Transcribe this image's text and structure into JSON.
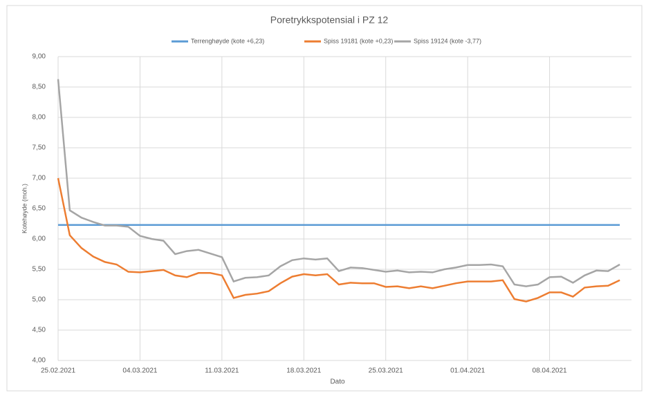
{
  "chart_data": {
    "type": "line",
    "title": "Poretrykkspotensial i PZ 12",
    "x_label": "Dato",
    "y_label": "Kotehøyde (moh.)",
    "x": [
      "25.02.2021",
      "26.02.2021",
      "27.02.2021",
      "28.02.2021",
      "01.03.2021",
      "02.03.2021",
      "03.03.2021",
      "04.03.2021",
      "05.03.2021",
      "06.03.2021",
      "07.03.2021",
      "08.03.2021",
      "09.03.2021",
      "10.03.2021",
      "11.03.2021",
      "12.03.2021",
      "13.03.2021",
      "14.03.2021",
      "15.03.2021",
      "16.03.2021",
      "17.03.2021",
      "18.03.2021",
      "19.03.2021",
      "20.03.2021",
      "21.03.2021",
      "22.03.2021",
      "23.03.2021",
      "24.03.2021",
      "25.03.2021",
      "26.03.2021",
      "27.03.2021",
      "28.03.2021",
      "29.03.2021",
      "30.03.2021",
      "31.03.2021",
      "01.04.2021",
      "02.04.2021",
      "03.04.2021",
      "04.04.2021",
      "05.04.2021",
      "06.04.2021",
      "07.04.2021",
      "08.04.2021",
      "09.04.2021",
      "10.04.2021",
      "11.04.2021",
      "12.04.2021",
      "13.04.2021",
      "14.04.2021"
    ],
    "series": [
      {
        "name": "Terrenghøyde (kote +6,23)",
        "color": "#5b9bd5",
        "values": [
          6.23,
          6.23,
          6.23,
          6.23,
          6.23,
          6.23,
          6.23,
          6.23,
          6.23,
          6.23,
          6.23,
          6.23,
          6.23,
          6.23,
          6.23,
          6.23,
          6.23,
          6.23,
          6.23,
          6.23,
          6.23,
          6.23,
          6.23,
          6.23,
          6.23,
          6.23,
          6.23,
          6.23,
          6.23,
          6.23,
          6.23,
          6.23,
          6.23,
          6.23,
          6.23,
          6.23,
          6.23,
          6.23,
          6.23,
          6.23,
          6.23,
          6.23,
          6.23,
          6.23,
          6.23,
          6.23,
          6.23,
          6.23,
          6.23
        ]
      },
      {
        "name": "Spiss 19181 (kote +0,23)",
        "color": "#ed7d31",
        "values": [
          7.0,
          6.06,
          5.85,
          5.71,
          5.62,
          5.58,
          5.46,
          5.45,
          5.47,
          5.49,
          5.4,
          5.37,
          5.44,
          5.44,
          5.4,
          5.03,
          5.08,
          5.1,
          5.14,
          5.27,
          5.38,
          5.42,
          5.4,
          5.42,
          5.25,
          5.28,
          5.27,
          5.27,
          5.21,
          5.22,
          5.19,
          5.22,
          5.19,
          5.23,
          5.27,
          5.3,
          5.3,
          5.3,
          5.32,
          5.01,
          4.97,
          5.03,
          5.12,
          5.12,
          5.05,
          5.2,
          5.22,
          5.23,
          5.32
        ]
      },
      {
        "name": "Spiss 19124 (kote -3,77)",
        "color": "#a5a5a5",
        "values": [
          8.63,
          6.47,
          6.35,
          6.28,
          6.22,
          6.22,
          6.2,
          6.05,
          6.0,
          5.97,
          5.75,
          5.8,
          5.82,
          5.76,
          5.7,
          5.3,
          5.36,
          5.37,
          5.4,
          5.55,
          5.65,
          5.68,
          5.66,
          5.68,
          5.47,
          5.53,
          5.52,
          5.49,
          5.46,
          5.48,
          5.45,
          5.46,
          5.45,
          5.5,
          5.53,
          5.57,
          5.57,
          5.58,
          5.55,
          5.25,
          5.22,
          5.25,
          5.37,
          5.38,
          5.28,
          5.4,
          5.48,
          5.47,
          5.58
        ]
      }
    ],
    "xlim": [
      "25.02.2021",
      "15.04.2021"
    ],
    "xticks": [
      "25.02.2021",
      "04.03.2021",
      "11.03.2021",
      "18.03.2021",
      "25.03.2021",
      "01.04.2021",
      "08.04.2021"
    ],
    "ylim": [
      4,
      9
    ],
    "yticks": [
      {
        "value": 4,
        "label": "4,00"
      },
      {
        "value": 4.5,
        "label": "4,50"
      },
      {
        "value": 5,
        "label": "5,00"
      },
      {
        "value": 5.5,
        "label": "5,50"
      },
      {
        "value": 6,
        "label": "6,00"
      },
      {
        "value": 6.5,
        "label": "6,50"
      },
      {
        "value": 7,
        "label": "7,00"
      },
      {
        "value": 7.5,
        "label": "7,50"
      },
      {
        "value": 8,
        "label": "8,00"
      },
      {
        "value": 8.5,
        "label": "8,50"
      },
      {
        "value": 9,
        "label": "9,00"
      }
    ],
    "grid": true,
    "legend": "top"
  }
}
